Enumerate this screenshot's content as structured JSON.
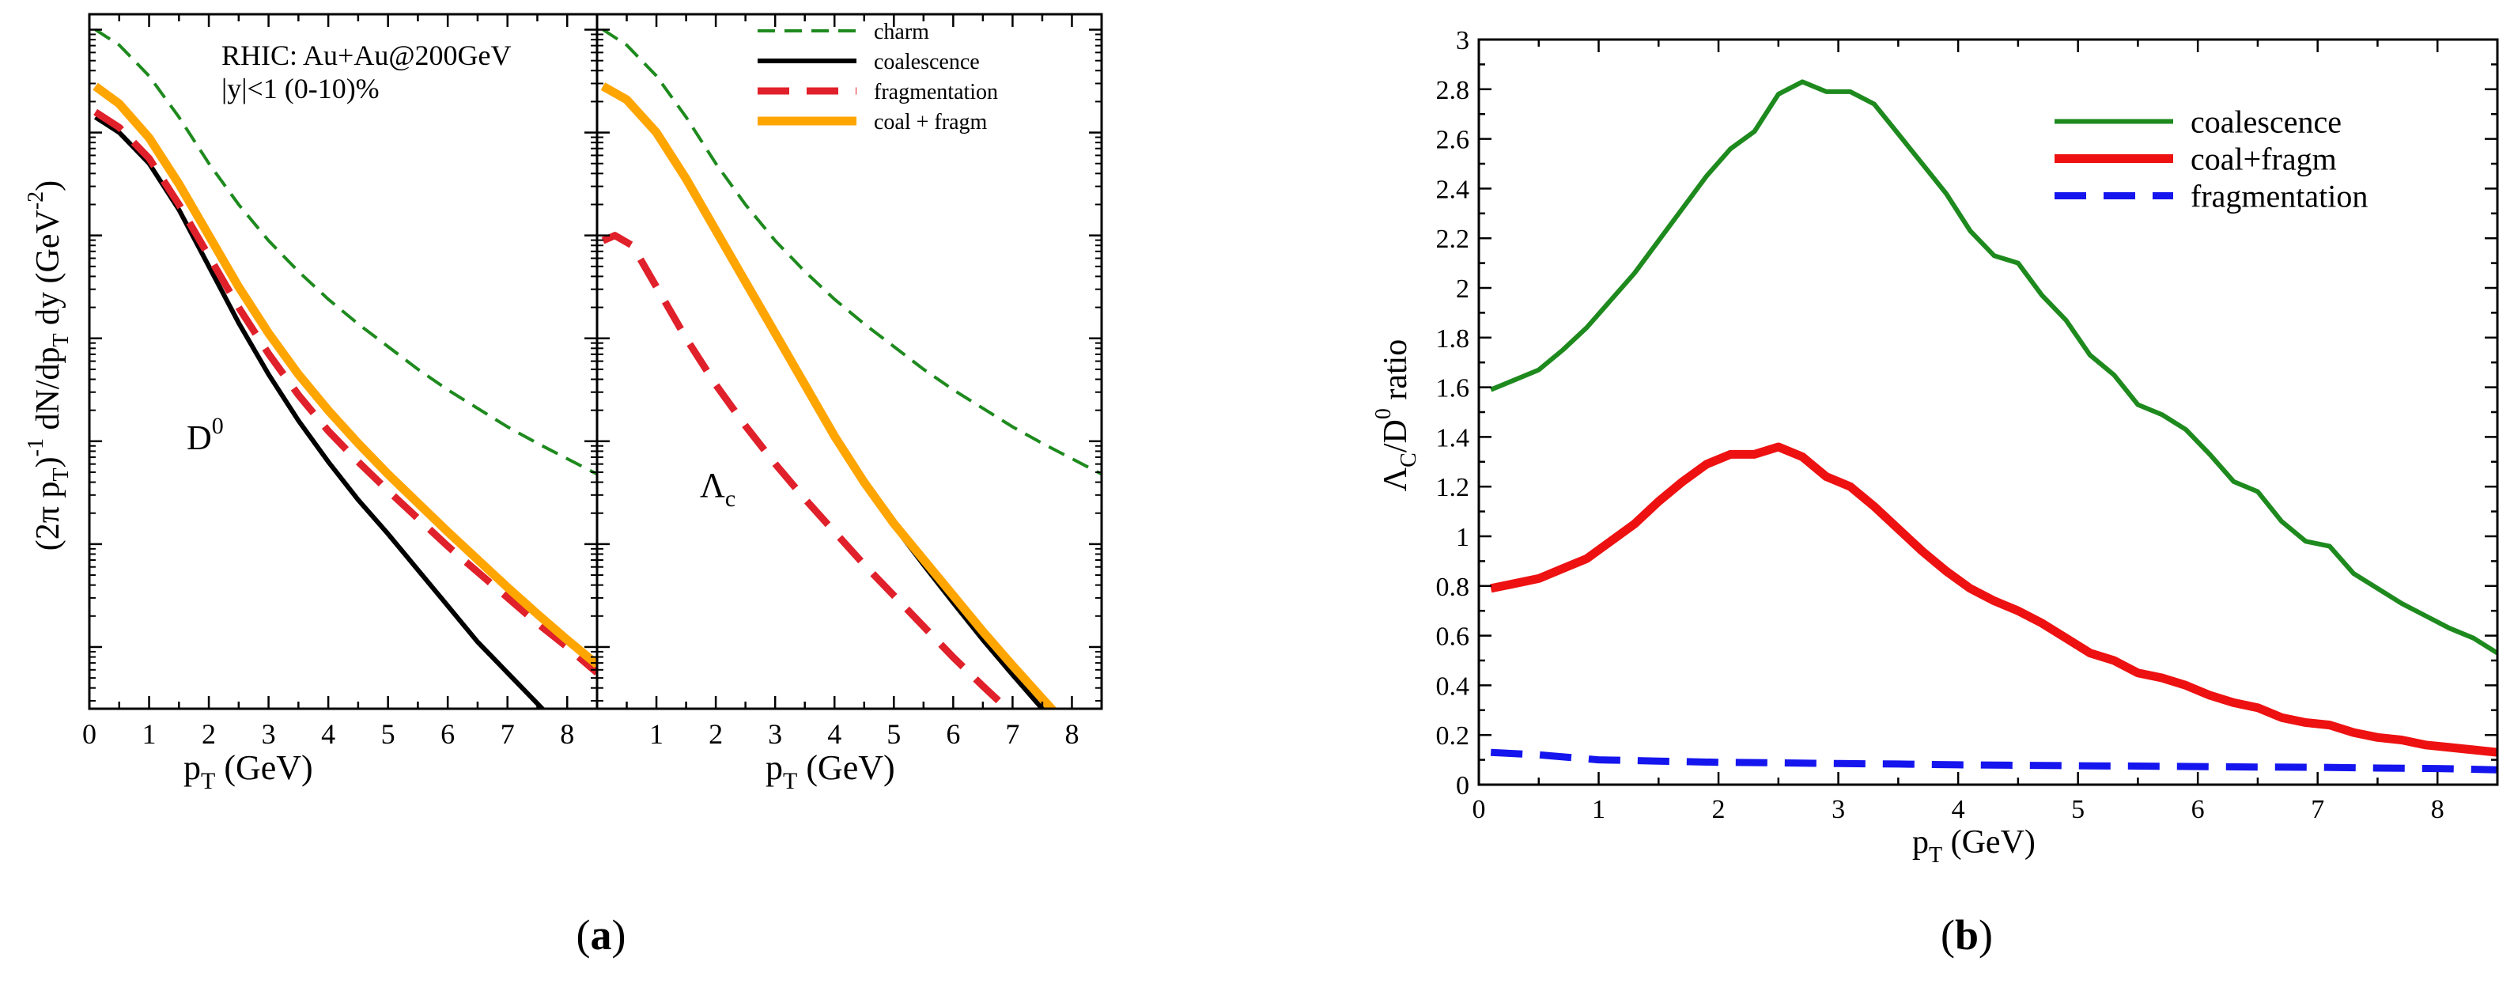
{
  "chart_data": [
    {
      "panel": "a-left",
      "type": "line",
      "title": "",
      "xlabel": "p_T (GeV)",
      "ylabel": "(2π p_T)^-1 dN/dp_T dy (GeV^-2)",
      "y_scale": "log",
      "xlim": [
        0,
        8.5
      ],
      "ylim_log10": [
        -6.6,
        0.15
      ],
      "xticks": [
        "0",
        "1",
        "2",
        "3",
        "4",
        "5",
        "6",
        "7",
        "8"
      ],
      "annotations": [
        "RHIC: Au+Au@200GeV",
        "|y|<1 (0-10)%",
        "D^0"
      ],
      "series": [
        {
          "name": "charm",
          "color": "#1e8a1e",
          "style": "dashed-thin",
          "x": [
            0.1,
            0.5,
            1,
            1.5,
            2,
            2.5,
            3,
            3.5,
            4,
            4.5,
            5,
            5.5,
            6,
            6.5,
            7,
            7.5,
            8,
            8.5
          ],
          "log10y": [
            0.0,
            -0.15,
            -0.45,
            -0.85,
            -1.3,
            -1.7,
            -2.05,
            -2.35,
            -2.62,
            -2.86,
            -3.08,
            -3.3,
            -3.5,
            -3.68,
            -3.86,
            -4.02,
            -4.17,
            -4.32
          ]
        },
        {
          "name": "coalescence",
          "color": "#000000",
          "style": "solid",
          "x": [
            0.1,
            0.5,
            1,
            1.5,
            2,
            2.5,
            3,
            3.5,
            4,
            4.5,
            5,
            5.5,
            6,
            6.5,
            7,
            7.5,
            8,
            8.5
          ],
          "log10y": [
            -0.85,
            -1.0,
            -1.3,
            -1.75,
            -2.3,
            -2.85,
            -3.35,
            -3.8,
            -4.2,
            -4.57,
            -4.9,
            -5.25,
            -5.6,
            -5.95,
            -6.25,
            -6.55,
            -6.85,
            -7.15
          ]
        },
        {
          "name": "fragmentation",
          "color": "#e0202a",
          "style": "dashed-thick",
          "x": [
            0.1,
            0.5,
            1,
            1.5,
            2,
            2.5,
            3,
            3.5,
            4,
            4.5,
            5,
            5.5,
            6,
            6.5,
            7,
            7.5,
            8,
            8.5
          ],
          "log10y": [
            -0.8,
            -0.95,
            -1.25,
            -1.7,
            -2.2,
            -2.7,
            -3.15,
            -3.55,
            -3.9,
            -4.2,
            -4.48,
            -4.75,
            -5.02,
            -5.27,
            -5.52,
            -5.77,
            -6.0,
            -6.25
          ]
        },
        {
          "name": "coal + fragm",
          "color": "#ffa500",
          "style": "solid-thick",
          "x": [
            0.1,
            0.5,
            1,
            1.5,
            2,
            2.5,
            3,
            3.5,
            4,
            4.5,
            5,
            5.5,
            6,
            6.5,
            7,
            7.5,
            8,
            8.5
          ],
          "log10y": [
            -0.55,
            -0.72,
            -1.05,
            -1.5,
            -2.0,
            -2.5,
            -2.95,
            -3.35,
            -3.7,
            -4.02,
            -4.32,
            -4.6,
            -4.88,
            -5.15,
            -5.42,
            -5.68,
            -5.93,
            -6.17
          ]
        }
      ]
    },
    {
      "panel": "a-right",
      "type": "line",
      "title": "",
      "xlabel": "p_T (GeV)",
      "ylabel": "",
      "y_scale": "log",
      "xlim": [
        0,
        8.5
      ],
      "ylim_log10": [
        -6.6,
        0.15
      ],
      "xticks": [
        "1",
        "2",
        "3",
        "4",
        "5",
        "6",
        "7",
        "8"
      ],
      "annotations": [
        "Λ_c"
      ],
      "legend": {
        "position": "top-right",
        "entries": [
          "charm",
          "coalescence",
          "fragmentation",
          "coal + fragm"
        ]
      },
      "series": [
        {
          "name": "charm",
          "color": "#1e8a1e",
          "style": "dashed-thin",
          "x": [
            0.1,
            0.5,
            1,
            1.5,
            2,
            2.5,
            3,
            3.5,
            4,
            4.5,
            5,
            5.5,
            6,
            6.5,
            7,
            7.5,
            8,
            8.5
          ],
          "log10y": [
            0.0,
            -0.15,
            -0.45,
            -0.85,
            -1.3,
            -1.7,
            -2.05,
            -2.35,
            -2.62,
            -2.86,
            -3.08,
            -3.3,
            -3.5,
            -3.68,
            -3.86,
            -4.02,
            -4.17,
            -4.32
          ]
        },
        {
          "name": "coalescence",
          "color": "#000000",
          "style": "solid",
          "x": [
            0.1,
            0.5,
            1,
            1.5,
            2,
            2.5,
            3,
            3.5,
            4,
            4.5,
            5,
            5.5,
            6,
            6.5,
            7,
            7.5,
            8,
            8.5
          ],
          "log10y": [
            -0.55,
            -0.68,
            -1.0,
            -1.45,
            -1.95,
            -2.45,
            -2.95,
            -3.45,
            -3.95,
            -4.4,
            -4.82,
            -5.2,
            -5.57,
            -5.93,
            -6.27,
            -6.6,
            -6.92,
            -7.22
          ]
        },
        {
          "name": "fragmentation",
          "color": "#e0202a",
          "style": "dashed-thick",
          "x": [
            0.1,
            0.3,
            0.6,
            1,
            1.5,
            2,
            2.5,
            3,
            3.5,
            4,
            4.5,
            5,
            5.5,
            6,
            6.5,
            7,
            7.5,
            8,
            8.5
          ],
          "log10y": [
            -2.05,
            -2.0,
            -2.1,
            -2.5,
            -3.0,
            -3.45,
            -3.85,
            -4.22,
            -4.56,
            -4.88,
            -5.2,
            -5.5,
            -5.8,
            -6.1,
            -6.38,
            -6.65,
            -6.92,
            -7.18,
            -7.45
          ]
        },
        {
          "name": "coal + fragm",
          "color": "#ffa500",
          "style": "solid-thick",
          "x": [
            0.1,
            0.5,
            1,
            1.5,
            2,
            2.5,
            3,
            3.5,
            4,
            4.5,
            5,
            5.5,
            6,
            6.5,
            7,
            7.5,
            8,
            8.5
          ],
          "log10y": [
            -0.55,
            -0.68,
            -1.0,
            -1.45,
            -1.95,
            -2.45,
            -2.95,
            -3.45,
            -3.95,
            -4.4,
            -4.8,
            -5.15,
            -5.5,
            -5.85,
            -6.18,
            -6.5,
            -6.82,
            -7.12
          ]
        }
      ]
    },
    {
      "panel": "b",
      "type": "line",
      "title": "",
      "xlabel": "p_T (GeV)",
      "ylabel": "Λ_C/D^0 ratio",
      "xlim": [
        0,
        8.5
      ],
      "ylim": [
        0,
        3
      ],
      "xticks": [
        "0",
        "1",
        "2",
        "3",
        "4",
        "5",
        "6",
        "7",
        "8"
      ],
      "yticks": [
        "0",
        "0.2",
        "0.4",
        "0.6",
        "0.8",
        "1",
        "1.2",
        "1.4",
        "1.6",
        "1.8",
        "2",
        "2.2",
        "2.4",
        "2.6",
        "2.8",
        "3"
      ],
      "legend": {
        "position": "top-right",
        "entries": [
          "coalescence",
          "coal+fragm",
          "fragmentation"
        ]
      },
      "series": [
        {
          "name": "coalescence",
          "color": "#1e8a1e",
          "style": "solid",
          "x": [
            0.1,
            0.3,
            0.5,
            0.7,
            0.9,
            1.1,
            1.3,
            1.5,
            1.7,
            1.9,
            2.1,
            2.3,
            2.5,
            2.7,
            2.9,
            3.1,
            3.3,
            3.5,
            3.7,
            3.9,
            4.1,
            4.3,
            4.5,
            4.7,
            4.9,
            5.1,
            5.3,
            5.5,
            5.7,
            5.9,
            6.1,
            6.3,
            6.5,
            6.7,
            6.9,
            7.1,
            7.3,
            7.5,
            7.7,
            7.9,
            8.1,
            8.3,
            8.5
          ],
          "values": [
            1.59,
            1.63,
            1.67,
            1.75,
            1.84,
            1.95,
            2.06,
            2.19,
            2.32,
            2.45,
            2.56,
            2.63,
            2.78,
            2.83,
            2.79,
            2.79,
            2.74,
            2.62,
            2.5,
            2.38,
            2.23,
            2.13,
            2.1,
            1.97,
            1.87,
            1.73,
            1.65,
            1.53,
            1.49,
            1.43,
            1.33,
            1.22,
            1.18,
            1.06,
            0.98,
            0.96,
            0.85,
            0.79,
            0.73,
            0.68,
            0.63,
            0.59,
            0.53
          ]
        },
        {
          "name": "coal+fragm",
          "color": "#ee1111",
          "style": "solid-thick",
          "x": [
            0.1,
            0.3,
            0.5,
            0.7,
            0.9,
            1.1,
            1.3,
            1.5,
            1.7,
            1.9,
            2.1,
            2.3,
            2.5,
            2.7,
            2.9,
            3.1,
            3.3,
            3.5,
            3.7,
            3.9,
            4.1,
            4.3,
            4.5,
            4.7,
            4.9,
            5.1,
            5.3,
            5.5,
            5.7,
            5.9,
            6.1,
            6.3,
            6.5,
            6.7,
            6.9,
            7.1,
            7.3,
            7.5,
            7.7,
            7.9,
            8.1,
            8.3,
            8.5
          ],
          "values": [
            0.79,
            0.81,
            0.83,
            0.87,
            0.91,
            0.98,
            1.05,
            1.14,
            1.22,
            1.29,
            1.33,
            1.33,
            1.36,
            1.32,
            1.24,
            1.2,
            1.12,
            1.03,
            0.94,
            0.86,
            0.79,
            0.74,
            0.7,
            0.65,
            0.59,
            0.53,
            0.5,
            0.45,
            0.43,
            0.4,
            0.36,
            0.33,
            0.31,
            0.27,
            0.25,
            0.24,
            0.21,
            0.19,
            0.18,
            0.16,
            0.15,
            0.14,
            0.13
          ]
        },
        {
          "name": "fragmentation",
          "color": "#1515ee",
          "style": "dashed-thick",
          "x": [
            0.1,
            0.5,
            1,
            1.5,
            2,
            2.5,
            3,
            3.5,
            4,
            4.5,
            5,
            5.5,
            6,
            6.5,
            7,
            7.5,
            8,
            8.5
          ],
          "values": [
            0.13,
            0.12,
            0.1,
            0.095,
            0.09,
            0.088,
            0.085,
            0.083,
            0.08,
            0.078,
            0.076,
            0.075,
            0.073,
            0.071,
            0.07,
            0.067,
            0.065,
            0.06
          ]
        }
      ]
    }
  ],
  "captions": {
    "a": "a",
    "b": "b"
  }
}
